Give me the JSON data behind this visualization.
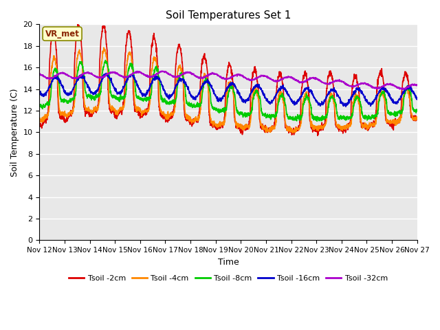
{
  "title": "Soil Temperatures Set 1",
  "xlabel": "Time",
  "ylabel": "Soil Temperature (C)",
  "annotation": "VR_met",
  "ylim": [
    0,
    20
  ],
  "yticks": [
    0,
    2,
    4,
    6,
    8,
    10,
    12,
    14,
    16,
    18,
    20
  ],
  "xtick_labels": [
    "Nov 12",
    "Nov 13",
    "Nov 14",
    "Nov 15",
    "Nov 16",
    "Nov 17",
    "Nov 18",
    "Nov 19",
    "Nov 20",
    "Nov 21",
    "Nov 22",
    "Nov 23",
    "Nov 24",
    "Nov 25",
    "Nov 26",
    "Nov 27"
  ],
  "colors": {
    "Tsoil -2cm": "#dd0000",
    "Tsoil -4cm": "#ff8800",
    "Tsoil -8cm": "#00cc00",
    "Tsoil -16cm": "#0000cc",
    "Tsoil -32cm": "#aa00cc"
  },
  "bg_color": "#e8e8e8",
  "fig_bg": "#ffffff",
  "legend_labels": [
    "Tsoil -2cm",
    "Tsoil -4cm",
    "Tsoil -8cm",
    "Tsoil -16cm",
    "Tsoil -32cm"
  ]
}
